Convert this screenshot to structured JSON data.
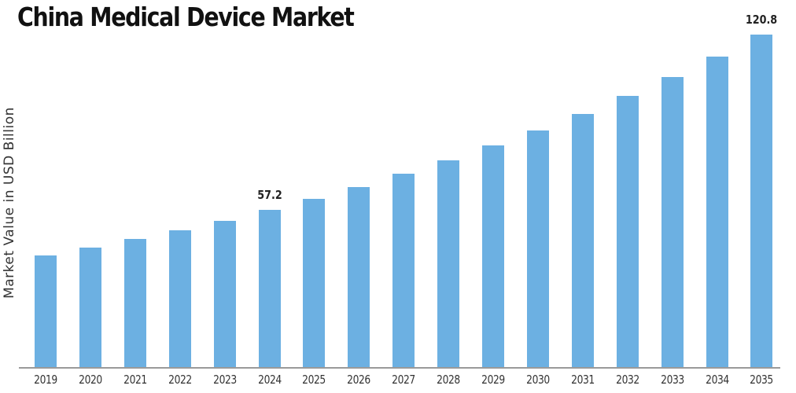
{
  "chart_data": {
    "type": "bar",
    "title": "China Medical Device Market",
    "xlabel": "",
    "ylabel": "Market Value in USD Billion",
    "categories": [
      "2019",
      "2020",
      "2021",
      "2022",
      "2023",
      "2024",
      "2025",
      "2026",
      "2027",
      "2028",
      "2029",
      "2030",
      "2031",
      "2032",
      "2033",
      "2034",
      "2035"
    ],
    "values": [
      40.6,
      43.4,
      46.6,
      49.7,
      53.1,
      57.2,
      61.1,
      65.4,
      70.3,
      75.1,
      80.5,
      86.0,
      92.0,
      98.5,
      105.4,
      112.8,
      120.8
    ],
    "data_labels": {
      "2024": "57.2",
      "2035": "120.8"
    },
    "ylim": [
      0,
      125
    ],
    "grid": false,
    "legend": null,
    "bar_color": "#6cb0e2"
  }
}
